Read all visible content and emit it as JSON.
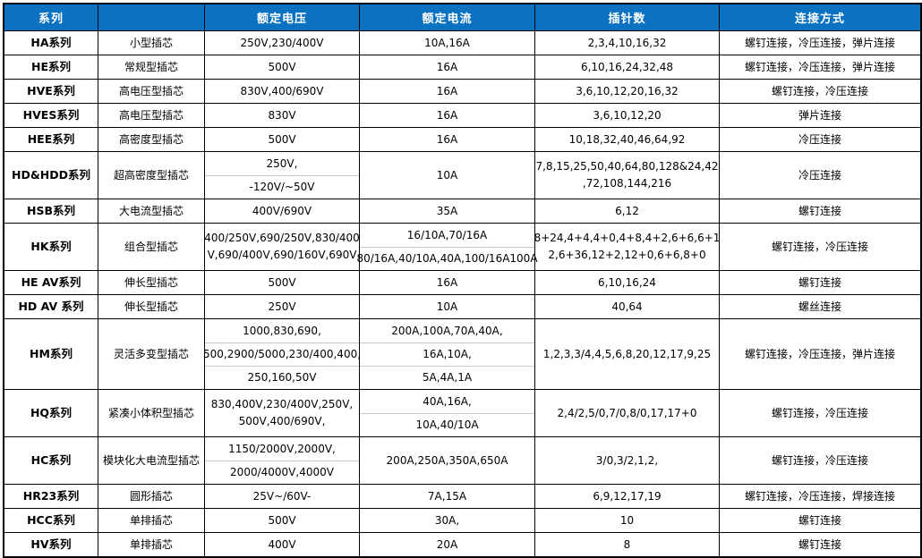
{
  "table": {
    "header_bg": "#0B72C2",
    "header_text_color": "#FFFFFF",
    "border_color": "#000000",
    "divider_color": "#C8C8C8",
    "columns": [
      {
        "label": "系列"
      },
      {
        "label": ""
      },
      {
        "label": "额定电压"
      },
      {
        "label": "额定电流"
      },
      {
        "label": "插针数"
      },
      {
        "label": "连接方式"
      }
    ],
    "rows": [
      {
        "series": "HA系列",
        "type": "小型插芯",
        "voltage": {
          "lines": [
            "250V,230/400V"
          ],
          "divided": false
        },
        "current": {
          "lines": [
            "10A,16A"
          ],
          "divided": false
        },
        "pins": {
          "lines": [
            "2,3,4,10,16,32"
          ],
          "divided": false
        },
        "connection": "螺钉连接，冷压连接，弹片连接"
      },
      {
        "series": "HE系列",
        "type": "常规型插芯",
        "voltage": {
          "lines": [
            "500V"
          ],
          "divided": false
        },
        "current": {
          "lines": [
            "16A"
          ],
          "divided": false
        },
        "pins": {
          "lines": [
            "6,10,16,24,32,48"
          ],
          "divided": false
        },
        "connection": "螺钉连接，冷压连接，弹片连接"
      },
      {
        "series": "HVE系列",
        "type": "高电压型插芯",
        "voltage": {
          "lines": [
            "830V,400/690V"
          ],
          "divided": false
        },
        "current": {
          "lines": [
            "16A"
          ],
          "divided": false
        },
        "pins": {
          "lines": [
            "3,6,10,12,20,16,32"
          ],
          "divided": false
        },
        "connection": "螺钉连接，冷压连接"
      },
      {
        "series": "HVES系列",
        "type": "高电压型插芯",
        "voltage": {
          "lines": [
            "830V"
          ],
          "divided": false
        },
        "current": {
          "lines": [
            "16A"
          ],
          "divided": false
        },
        "pins": {
          "lines": [
            "3,6,10,12,20"
          ],
          "divided": false
        },
        "connection": "弹片连接"
      },
      {
        "series": "HEE系列",
        "type": "高密度型插芯",
        "voltage": {
          "lines": [
            "500V"
          ],
          "divided": false
        },
        "current": {
          "lines": [
            "16A"
          ],
          "divided": false
        },
        "pins": {
          "lines": [
            "10,18,32,40,46,64,92"
          ],
          "divided": false
        },
        "connection": "冷压连接"
      },
      {
        "series": "HD&HDD系列",
        "type": "超高密度型插芯",
        "voltage": {
          "lines": [
            "250V,",
            "-120V/~50V"
          ],
          "divided": true
        },
        "current": {
          "lines": [
            "10A"
          ],
          "divided": false
        },
        "pins": {
          "lines": [
            "7,8,15,25,50,40,64,80,128&24,42",
            ",72,108,144,216"
          ],
          "divided": false
        },
        "connection": "冷压连接"
      },
      {
        "series": "HSB系列",
        "type": "大电流型插芯",
        "voltage": {
          "lines": [
            "400V/690V"
          ],
          "divided": false
        },
        "current": {
          "lines": [
            "35A"
          ],
          "divided": false
        },
        "pins": {
          "lines": [
            "6,12"
          ],
          "divided": false
        },
        "connection": "螺钉连接"
      },
      {
        "series": "HK系列",
        "type": "组合型插芯",
        "voltage": {
          "lines": [
            "400/250V,690/250V,830/400",
            "V,690/400V,690/160V,690V"
          ],
          "divided": false
        },
        "current": {
          "lines": [
            "16/10A,70/16A",
            "80/16A,40/10A,40A,100/16A100A"
          ],
          "divided": true
        },
        "pins": {
          "lines": [
            "8+24,4+4,4+0,4+8,4+2,6+6,6+1",
            "2,6+36,12+2,12+0,6+6,8+0"
          ],
          "divided": false
        },
        "connection": "螺钉连接，冷压连接"
      },
      {
        "series": "HE AV系列",
        "type": "伸长型插芯",
        "voltage": {
          "lines": [
            "500V"
          ],
          "divided": false
        },
        "current": {
          "lines": [
            "16A"
          ],
          "divided": false
        },
        "pins": {
          "lines": [
            "6,10,16,24"
          ],
          "divided": false
        },
        "connection": "螺钉连接"
      },
      {
        "series": "HD AV 系列",
        "type": "伸长型插芯",
        "voltage": {
          "lines": [
            "250V"
          ],
          "divided": false
        },
        "current": {
          "lines": [
            "10A"
          ],
          "divided": false
        },
        "pins": {
          "lines": [
            "40,64"
          ],
          "divided": false
        },
        "connection": "螺丝连接"
      },
      {
        "series": "HM系列",
        "type": "灵活多变型插芯",
        "voltage": {
          "lines": [
            "1000,830,690,",
            "500,2900/5000,230/400,400,",
            "250,160,50V"
          ],
          "divided": true
        },
        "current": {
          "lines": [
            "200A,100A,70A,40A,",
            "16A,10A,",
            "5A,4A,1A"
          ],
          "divided": true
        },
        "pins": {
          "lines": [
            "1,2,3,3/4,4,5,6,8,20,12,17,9,25"
          ],
          "divided": false
        },
        "connection": "螺钉连接，冷压连接，弹片连接"
      },
      {
        "series": "HQ系列",
        "type": "紧凑小体积型插芯",
        "voltage": {
          "lines": [
            "830,400V,230/400V,250V,",
            "500V,400/690V,"
          ],
          "divided": false
        },
        "current": {
          "lines": [
            "40A,16A,",
            "10A,40/10A"
          ],
          "divided": true
        },
        "pins": {
          "lines": [
            "2,4/2,5/0,7/0,8/0,17,17+0"
          ],
          "divided": false
        },
        "connection": "螺钉连接，冷压连接"
      },
      {
        "series": "HC系列",
        "type": "模块化大电流型插芯",
        "voltage": {
          "lines": [
            "1150/2000V,2000V,",
            "2000/4000V,4000V"
          ],
          "divided": true
        },
        "current": {
          "lines": [
            "200A,250A,350A,650A"
          ],
          "divided": false
        },
        "pins": {
          "lines": [
            "3/0,3/2,1,2,"
          ],
          "divided": false
        },
        "connection": "螺钉连接，冷压连接"
      },
      {
        "series": "HR23系列",
        "type": "圆形插芯",
        "voltage": {
          "lines": [
            "25V~/60V-"
          ],
          "divided": false
        },
        "current": {
          "lines": [
            "7A,15A"
          ],
          "divided": false
        },
        "pins": {
          "lines": [
            "6,9,12,17,19"
          ],
          "divided": false
        },
        "connection": "螺钉连接，冷压连接，焊接连接"
      },
      {
        "series": "HCC系列",
        "type": "单排插芯",
        "voltage": {
          "lines": [
            "500V"
          ],
          "divided": false
        },
        "current": {
          "lines": [
            "30A,"
          ],
          "divided": false
        },
        "pins": {
          "lines": [
            "10"
          ],
          "divided": false
        },
        "connection": "螺钉连接"
      },
      {
        "series": "HV系列",
        "type": "单排插芯",
        "voltage": {
          "lines": [
            "400V"
          ],
          "divided": false
        },
        "current": {
          "lines": [
            "20A"
          ],
          "divided": false
        },
        "pins": {
          "lines": [
            "8"
          ],
          "divided": false
        },
        "connection": "螺钉连接"
      }
    ]
  }
}
